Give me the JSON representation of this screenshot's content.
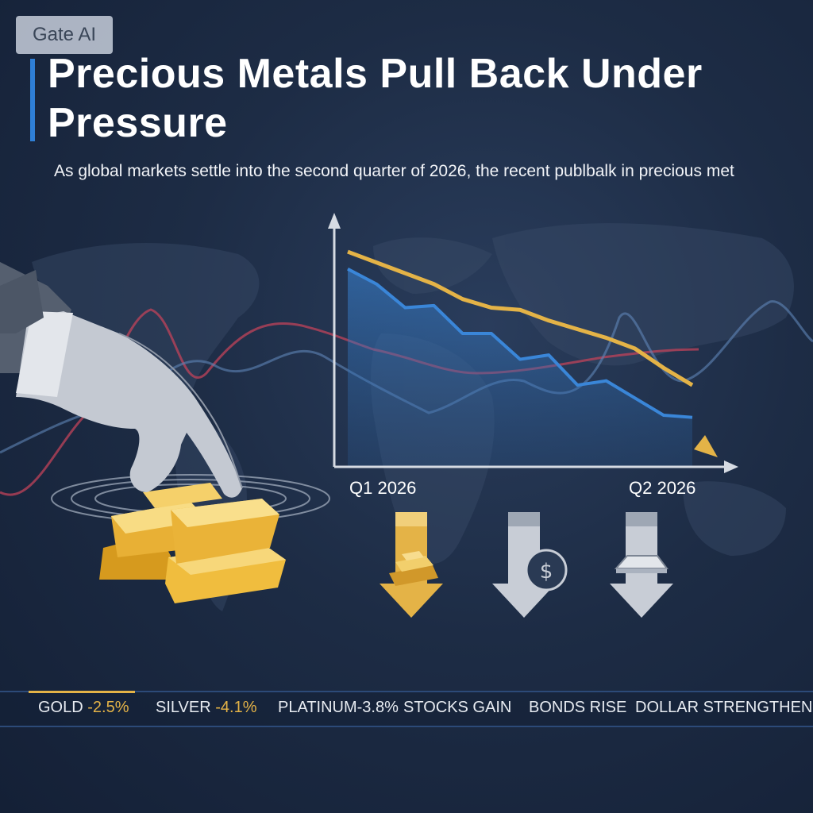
{
  "brand": {
    "badge": "Gate AI"
  },
  "headline": {
    "title": "Precious Metals Pull Back Under Pressure",
    "subtitle": "As global markets settle into the second quarter of 2026, the recent publbalk in precious met"
  },
  "chart_data": {
    "type": "line",
    "x_labels": [
      "Q1 2026",
      "Q2 2026"
    ],
    "series": [
      {
        "values": [
          100,
          95,
          90,
          85,
          78,
          74,
          73,
          68,
          64,
          60,
          55,
          46,
          38
        ],
        "color": "#e4b347"
      },
      {
        "values": [
          92,
          85,
          74,
          75,
          62,
          62,
          50,
          52,
          38,
          40,
          32,
          24,
          23
        ],
        "color": "#3a86d8"
      }
    ],
    "ylim": [
      0,
      110
    ],
    "grid": false
  },
  "icons": [
    {
      "name": "gold-bars-down-arrow-icon",
      "color": "#e4b347"
    },
    {
      "name": "dollar-coin-down-arrow-icon",
      "color": "#c8cdd6"
    },
    {
      "name": "silver-bar-down-arrow-icon",
      "color": "#c8cdd6"
    }
  ],
  "ticker": [
    {
      "label": "GOLD",
      "change": "-2.5%"
    },
    {
      "label": "SILVER",
      "change": "-4.1%"
    },
    {
      "label": "PLATINUM",
      "change": "-3.8%"
    },
    {
      "label": "STOCKS GAIN"
    },
    {
      "label": "BONDS RISE"
    },
    {
      "label": "DOLLAR STRENGTHEN"
    }
  ],
  "colors": {
    "accent_gold": "#e4b347",
    "accent_blue": "#2f7fd6",
    "background": "#1d2c45"
  }
}
